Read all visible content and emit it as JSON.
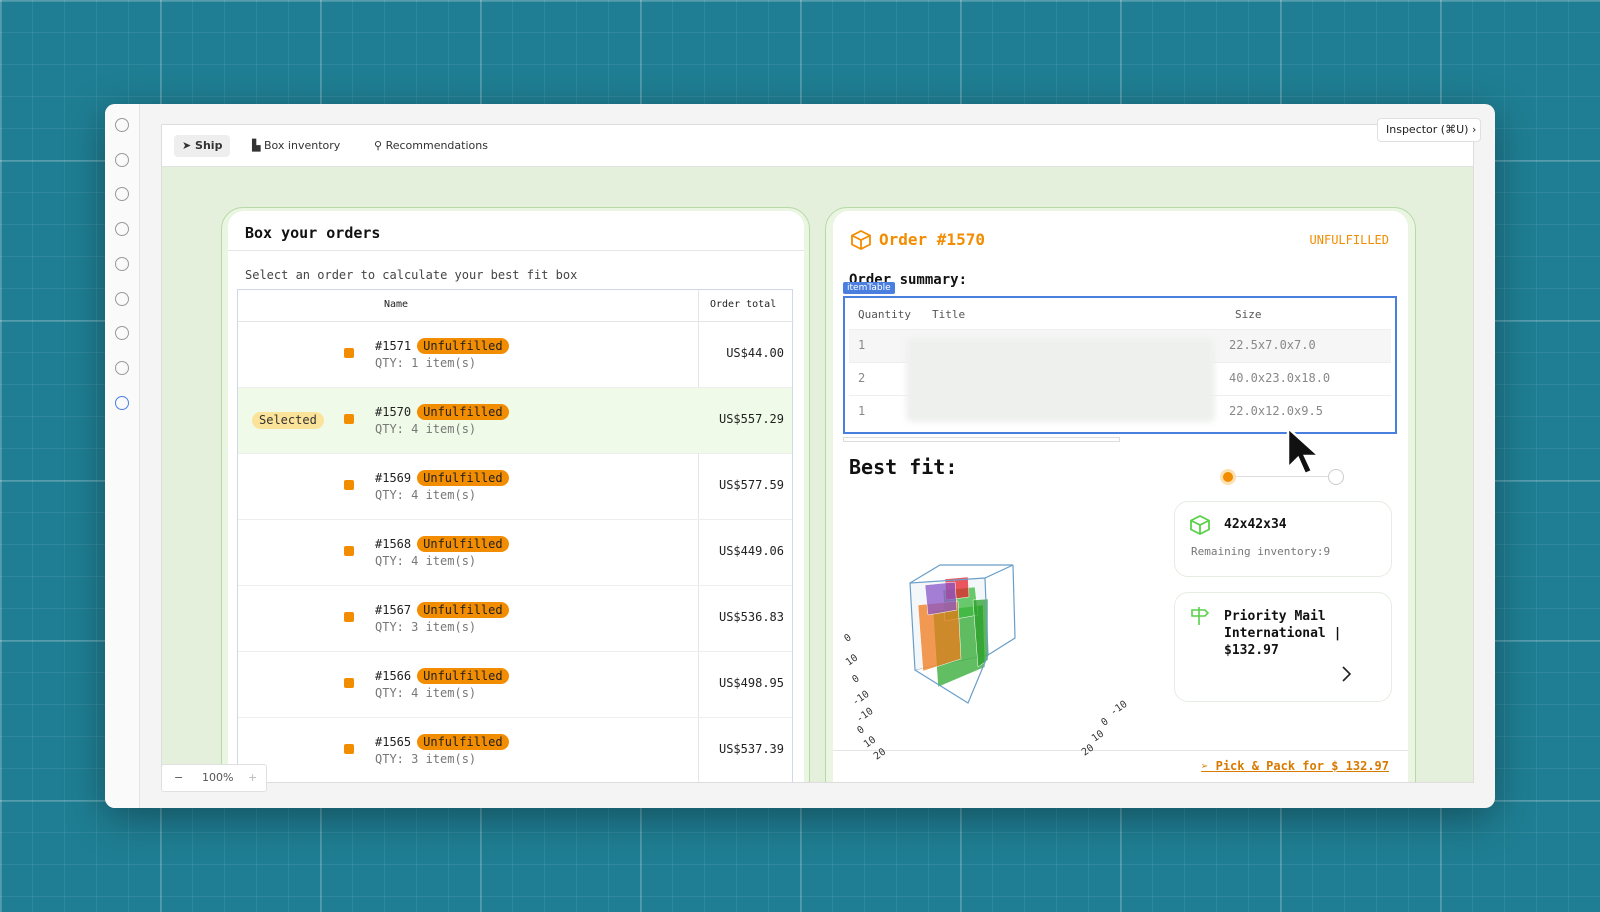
{
  "tabs": [
    "Ship",
    "Box inventory",
    "Recommendations"
  ],
  "inspector": "Inspector (⌘U)",
  "zoom": "100%",
  "orders_panel": {
    "title": "Box your orders",
    "subtitle": "Select an order to calculate your best fit box",
    "columns": [
      "Name",
      "Order total"
    ],
    "selected_label": "Selected",
    "rows": [
      {
        "id": "#1571",
        "status": "Unfulfilled",
        "qty": "QTY: 1 item(s)",
        "total": "US$44.00",
        "selected": false
      },
      {
        "id": "#1570",
        "status": "Unfulfilled",
        "qty": "QTY: 4 item(s)",
        "total": "US$557.29",
        "selected": true
      },
      {
        "id": "#1569",
        "status": "Unfulfilled",
        "qty": "QTY: 4 item(s)",
        "total": "US$577.59",
        "selected": false
      },
      {
        "id": "#1568",
        "status": "Unfulfilled",
        "qty": "QTY: 4 item(s)",
        "total": "US$449.06",
        "selected": false
      },
      {
        "id": "#1567",
        "status": "Unfulfilled",
        "qty": "QTY: 3 item(s)",
        "total": "US$536.83",
        "selected": false
      },
      {
        "id": "#1566",
        "status": "Unfulfilled",
        "qty": "QTY: 4 item(s)",
        "total": "US$498.95",
        "selected": false
      },
      {
        "id": "#1565",
        "status": "Unfulfilled",
        "qty": "QTY: 3 item(s)",
        "total": "US$537.39",
        "selected": false
      }
    ]
  },
  "order_panel": {
    "title": "Order #1570",
    "status": "UNFULFILLED",
    "summary_label": "Order summary:",
    "table_tag": "itemTable",
    "columns": [
      "Quantity",
      "Title",
      "Size"
    ],
    "rows": [
      {
        "quantity": "1",
        "size": "22.5x7.0x7.0"
      },
      {
        "quantity": "2",
        "size": "40.0x23.0x18.0"
      },
      {
        "quantity": "1",
        "size": "22.0x12.0x9.5"
      }
    ],
    "best_fit_label": "Best fit:",
    "box": {
      "name": "42x42x34",
      "remaining": "Remaining inventory:9"
    },
    "shipping": "Priority Mail International | $132.97",
    "plot_ticks_left": [
      "0",
      "10",
      "0",
      "-10",
      "-10",
      "0",
      "10",
      "20"
    ],
    "plot_ticks_right": [
      "-10",
      "0",
      "10",
      "20"
    ],
    "action": "Pick & Pack for $ 132.97"
  }
}
